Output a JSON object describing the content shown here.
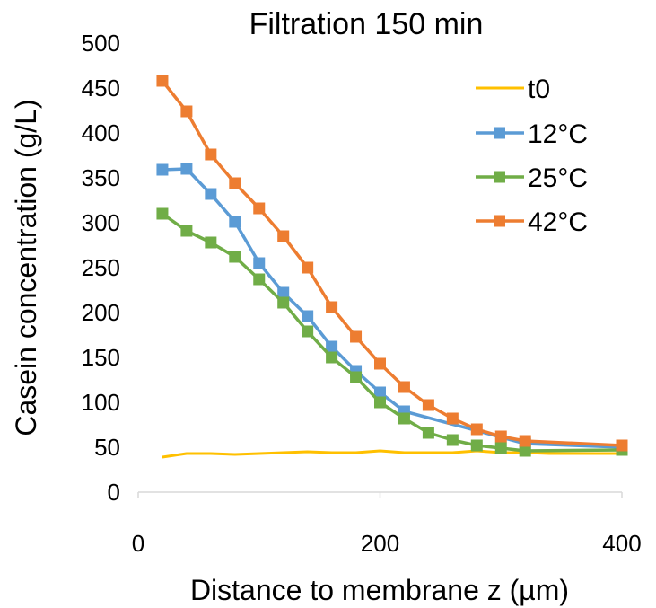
{
  "chart_data": {
    "type": "line",
    "title": "Filtration 150 min",
    "xlabel": "Distance to membrane z (µm)",
    "ylabel": "Casein concentration (g/L)",
    "xlim": [
      0,
      400
    ],
    "ylim": [
      0,
      500
    ],
    "xticks": [
      "0",
      "200",
      "400"
    ],
    "yticks": [
      "0",
      "50",
      "100",
      "150",
      "200",
      "250",
      "300",
      "350",
      "400",
      "450",
      "500"
    ],
    "grid": false,
    "legend": "top-right",
    "series": [
      {
        "name": "t0",
        "color": "#FFC000",
        "marker": "none",
        "x": [
          20,
          40,
          60,
          80,
          100,
          120,
          140,
          160,
          180,
          200,
          220,
          240,
          260,
          280,
          300,
          320,
          340,
          360,
          380,
          400
        ],
        "y": [
          39,
          43,
          43,
          42,
          43,
          44,
          45,
          44,
          44,
          46,
          44,
          44,
          44,
          46,
          44,
          44,
          43,
          43,
          43,
          43
        ]
      },
      {
        "name": "12°C",
        "color": "#5B9BD5",
        "marker": "square",
        "x": [
          20,
          40,
          60,
          80,
          100,
          120,
          140,
          160,
          180,
          200,
          220,
          320,
          400
        ],
        "y": [
          359,
          360,
          332,
          301,
          255,
          222,
          196,
          162,
          135,
          111,
          90,
          54,
          50
        ]
      },
      {
        "name": "25°C",
        "color": "#70AD47",
        "marker": "square",
        "x": [
          20,
          40,
          60,
          80,
          100,
          120,
          140,
          160,
          180,
          200,
          220,
          240,
          260,
          280,
          300,
          320,
          400
        ],
        "y": [
          310,
          291,
          278,
          262,
          237,
          211,
          179,
          150,
          128,
          100,
          82,
          66,
          58,
          52,
          49,
          46,
          47
        ]
      },
      {
        "name": "42°C",
        "color": "#ED7D31",
        "marker": "square",
        "x": [
          20,
          40,
          60,
          80,
          100,
          120,
          140,
          160,
          180,
          200,
          220,
          240,
          260,
          280,
          300,
          320,
          400
        ],
        "y": [
          458,
          424,
          376,
          344,
          316,
          285,
          250,
          206,
          173,
          143,
          117,
          97,
          82,
          70,
          62,
          57,
          52
        ]
      }
    ]
  }
}
